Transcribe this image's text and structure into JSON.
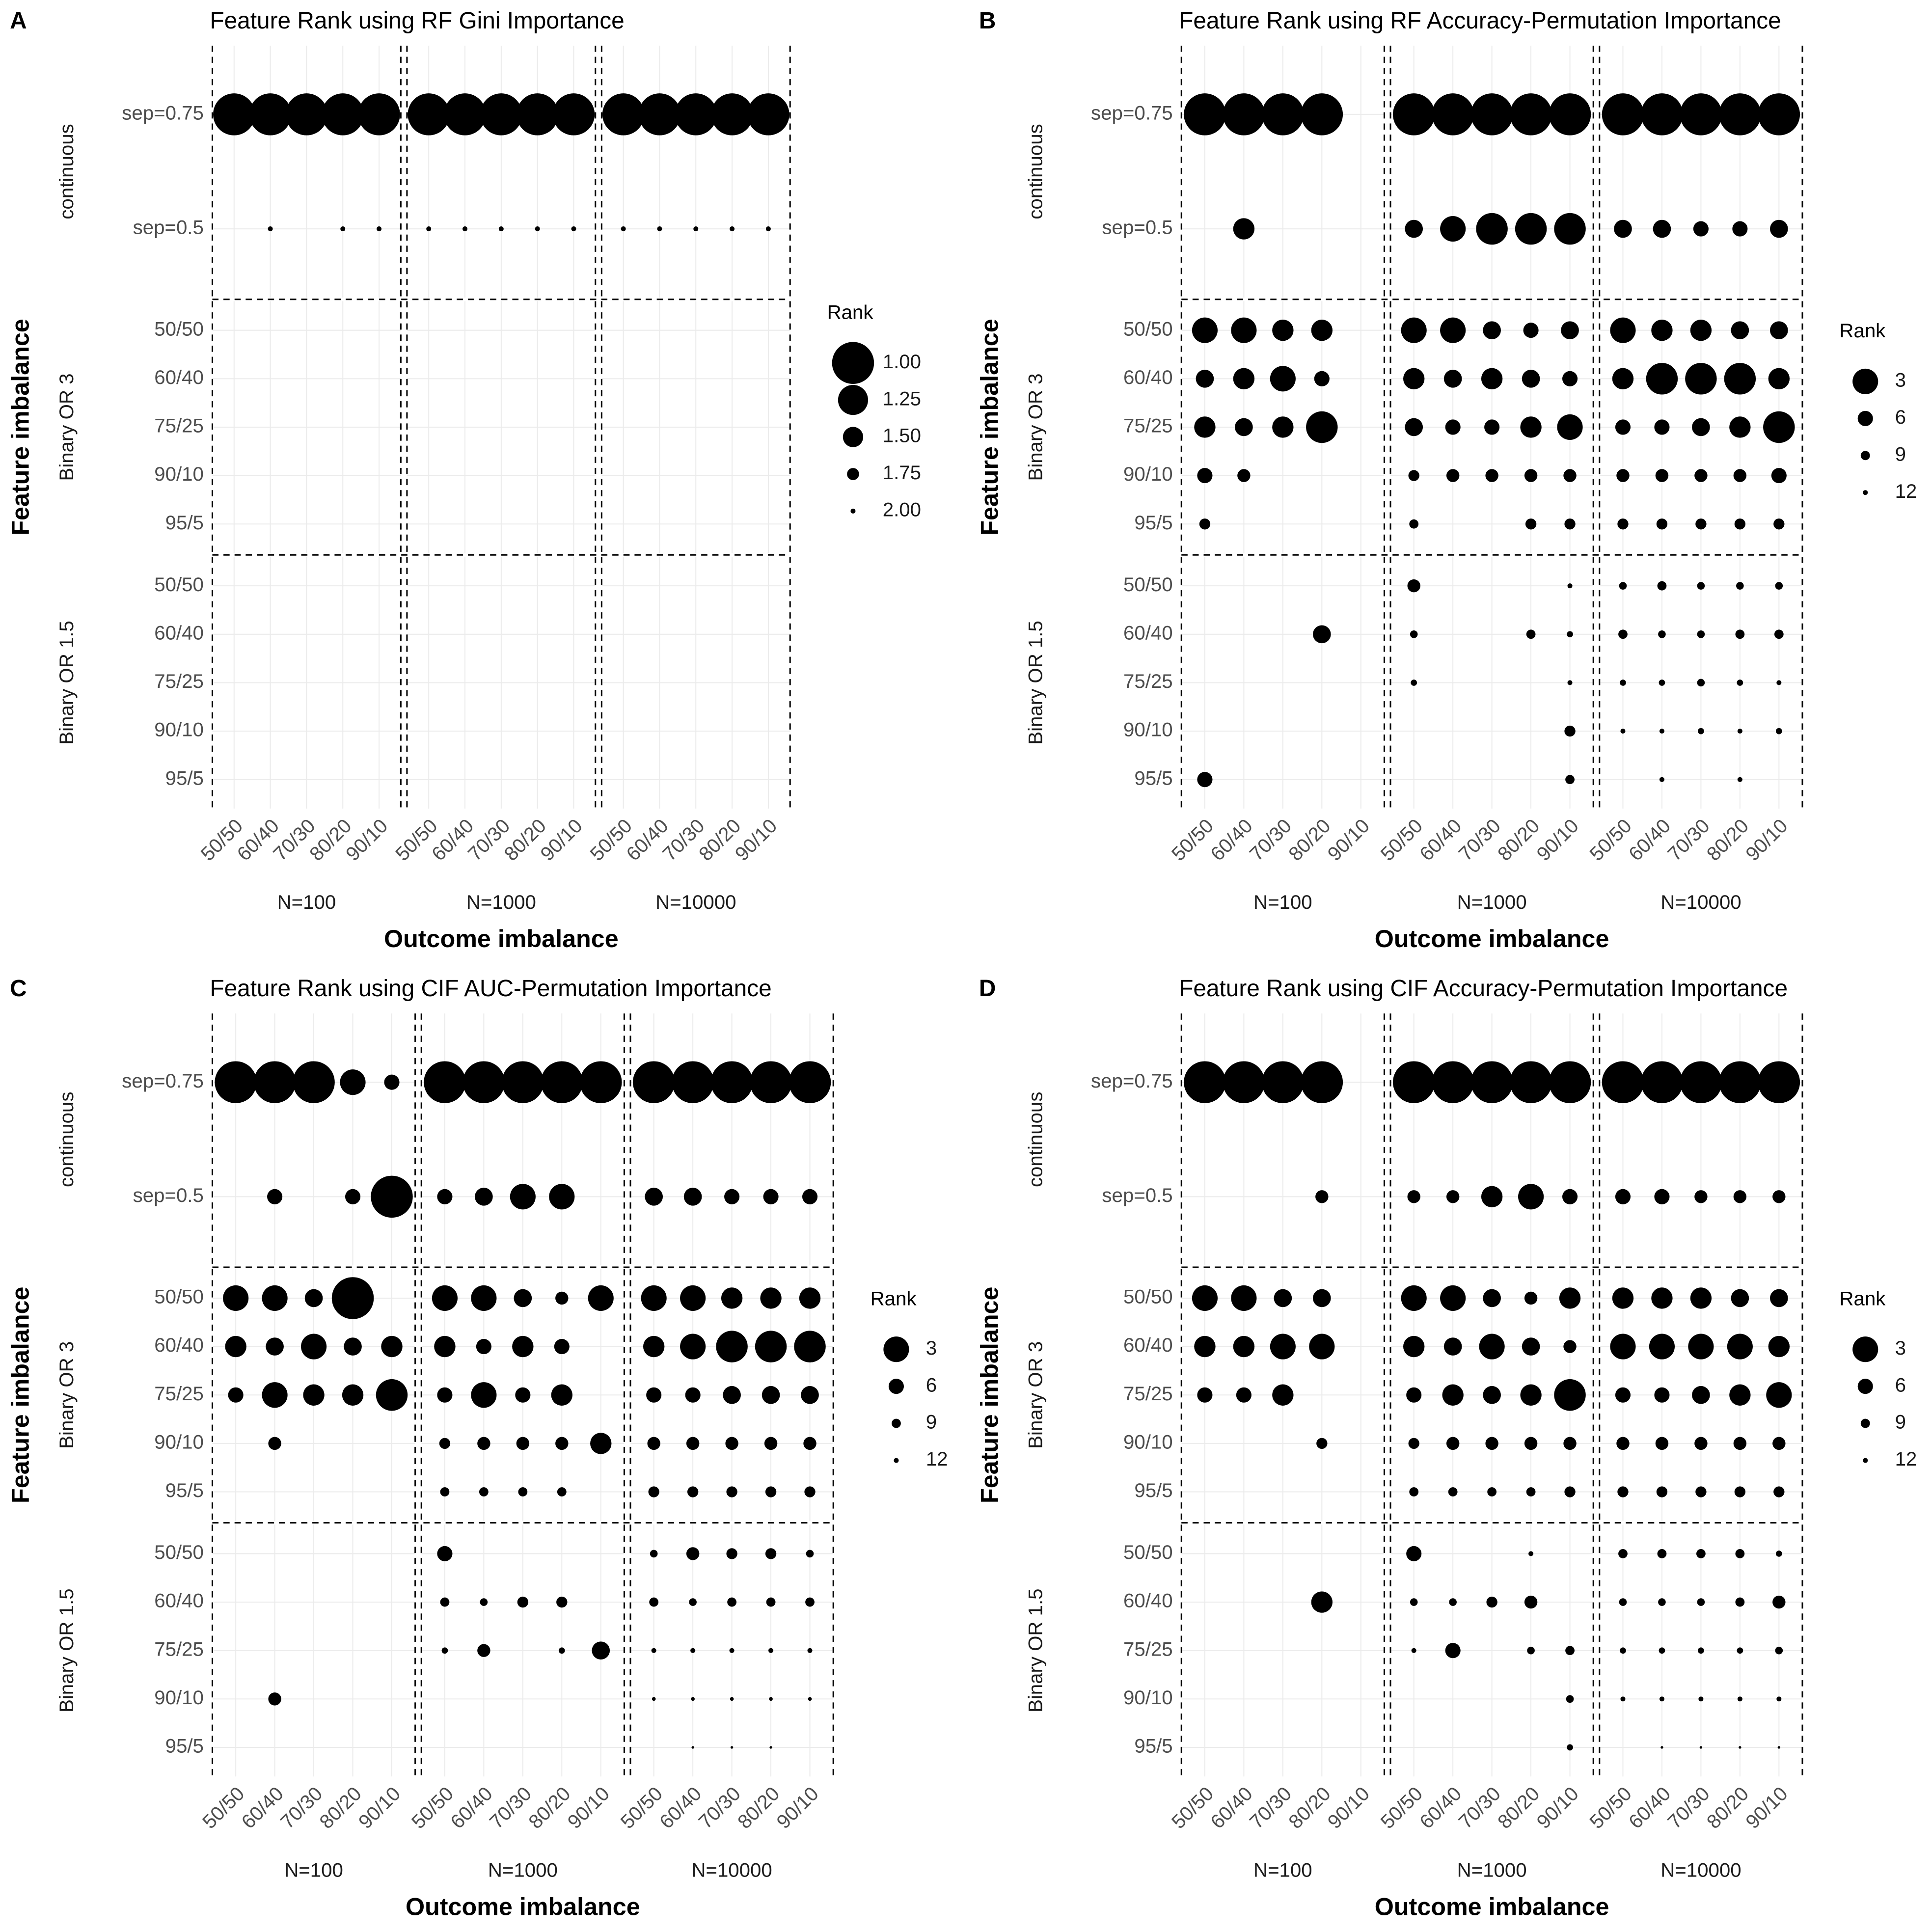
{
  "chart_data": [
    {
      "type": "bubble",
      "panel_label": "A",
      "title": "Feature Rank using RF Gini Importance",
      "x_label": "Outcome imbalance",
      "y_label": "Feature imbalance",
      "facet_columns": [
        "N=100",
        "N=1000",
        "N=10000"
      ],
      "categories": [
        "50/50",
        "60/40",
        "70/30",
        "80/20",
        "90/10"
      ],
      "row_groups": [
        {
          "name": "continuous",
          "rows": [
            "sep=0.75",
            "sep=0.5"
          ]
        },
        {
          "name": "Binary OR 3",
          "rows": [
            "50/50",
            "60/40",
            "75/25",
            "90/10",
            "95/5"
          ]
        },
        {
          "name": "Binary OR 1.5",
          "rows": [
            "50/50",
            "60/40",
            "75/25",
            "90/10",
            "95/5"
          ]
        }
      ],
      "color": "#000000",
      "size_legend": {
        "title": "Rank",
        "ticks": [
          {
            "value": 1,
            "label": "1.00"
          },
          {
            "value": 1.25,
            "label": "1.25"
          },
          {
            "value": 1.5,
            "label": "1.50"
          },
          {
            "value": 1.75,
            "label": "1.75"
          },
          {
            "value": 2,
            "label": "2.00"
          }
        ]
      },
      "values": [
        [
          1,
          1,
          1,
          1,
          1,
          1,
          1,
          1,
          1,
          1,
          1,
          1,
          1,
          1,
          1
        ],
        [
          null,
          2,
          null,
          2,
          2,
          2,
          2,
          2,
          2,
          2,
          2,
          2,
          2,
          2,
          2
        ],
        [
          null,
          null,
          null,
          null,
          null,
          null,
          null,
          null,
          null,
          null,
          null,
          null,
          null,
          null,
          null
        ],
        [
          null,
          null,
          null,
          null,
          null,
          null,
          null,
          null,
          null,
          null,
          null,
          null,
          null,
          null,
          null
        ],
        [
          null,
          null,
          null,
          null,
          null,
          null,
          null,
          null,
          null,
          null,
          null,
          null,
          null,
          null,
          null
        ],
        [
          null,
          null,
          null,
          null,
          null,
          null,
          null,
          null,
          null,
          null,
          null,
          null,
          null,
          null,
          null
        ],
        [
          null,
          null,
          null,
          null,
          null,
          null,
          null,
          null,
          null,
          null,
          null,
          null,
          null,
          null,
          null
        ],
        [
          null,
          null,
          null,
          null,
          null,
          null,
          null,
          null,
          null,
          null,
          null,
          null,
          null,
          null,
          null
        ],
        [
          null,
          null,
          null,
          null,
          null,
          null,
          null,
          null,
          null,
          null,
          null,
          null,
          null,
          null,
          null
        ],
        [
          null,
          null,
          null,
          null,
          null,
          null,
          null,
          null,
          null,
          null,
          null,
          null,
          null,
          null,
          null
        ],
        [
          null,
          null,
          null,
          null,
          null,
          null,
          null,
          null,
          null,
          null,
          null,
          null,
          null,
          null,
          null
        ],
        [
          null,
          null,
          null,
          null,
          null,
          null,
          null,
          null,
          null,
          null,
          null,
          null,
          null,
          null,
          null
        ]
      ]
    },
    {
      "type": "bubble",
      "panel_label": "B",
      "title": "Feature Rank using RF Accuracy-Permutation Importance",
      "x_label": "Outcome imbalance",
      "y_label": "Feature imbalance",
      "facet_columns": [
        "N=100",
        "N=1000",
        "N=10000"
      ],
      "categories": [
        "50/50",
        "60/40",
        "70/30",
        "80/20",
        "90/10"
      ],
      "row_groups": [
        {
          "name": "continuous",
          "rows": [
            "sep=0.75",
            "sep=0.5"
          ]
        },
        {
          "name": "Binary OR 3",
          "rows": [
            "50/50",
            "60/40",
            "75/25",
            "90/10",
            "95/5"
          ]
        },
        {
          "name": "Binary OR 1.5",
          "rows": [
            "50/50",
            "60/40",
            "75/25",
            "90/10",
            "95/5"
          ]
        }
      ],
      "color": "#000000",
      "size_legend": {
        "title": "Rank",
        "ticks": [
          3,
          6,
          9,
          12
        ]
      },
      "values": [
        [
          1,
          1,
          1,
          1,
          null,
          1,
          1,
          1,
          1,
          1,
          1,
          1,
          1,
          1,
          1
        ],
        [
          null,
          4,
          null,
          null,
          null,
          5,
          3,
          2,
          2,
          2,
          5,
          5,
          6,
          6,
          5
        ],
        [
          3,
          3,
          4,
          4,
          null,
          3,
          3,
          5,
          6,
          5,
          3,
          4,
          4,
          5,
          5
        ],
        [
          5,
          4,
          3,
          6,
          null,
          4,
          5,
          4,
          5,
          6,
          4,
          2,
          2,
          2,
          4
        ],
        [
          4,
          5,
          4,
          2,
          null,
          5,
          6,
          6,
          4,
          3,
          6,
          6,
          5,
          4,
          2
        ],
        [
          6,
          7,
          null,
          null,
          null,
          8,
          7,
          7,
          7,
          7,
          7,
          7,
          7,
          7,
          6
        ],
        [
          8,
          null,
          null,
          null,
          null,
          9,
          null,
          null,
          8,
          8,
          8,
          8,
          8,
          8,
          8
        ],
        [
          null,
          null,
          null,
          null,
          null,
          7,
          null,
          null,
          null,
          12,
          10,
          9,
          10,
          10,
          10
        ],
        [
          null,
          null,
          null,
          5,
          null,
          10,
          null,
          null,
          9,
          11,
          9,
          10,
          10,
          9,
          9
        ],
        [
          null,
          null,
          null,
          null,
          null,
          11,
          null,
          null,
          null,
          12,
          11,
          11,
          10,
          11,
          12
        ],
        [
          null,
          null,
          null,
          null,
          null,
          null,
          null,
          null,
          null,
          8,
          12,
          12,
          11,
          12,
          11
        ],
        [
          6,
          null,
          null,
          null,
          null,
          null,
          null,
          null,
          null,
          9,
          null,
          12,
          null,
          12,
          null
        ]
      ]
    },
    {
      "type": "bubble",
      "panel_label": "C",
      "title": "Feature Rank using CIF AUC-Permutation Importance",
      "x_label": "Outcome imbalance",
      "y_label": "Feature imbalance",
      "facet_columns": [
        "N=100",
        "N=1000",
        "N=10000"
      ],
      "categories": [
        "50/50",
        "60/40",
        "70/30",
        "80/20",
        "90/10"
      ],
      "row_groups": [
        {
          "name": "continuous",
          "rows": [
            "sep=0.75",
            "sep=0.5"
          ]
        },
        {
          "name": "Binary OR 3",
          "rows": [
            "50/50",
            "60/40",
            "75/25",
            "90/10",
            "95/5"
          ]
        },
        {
          "name": "Binary OR 1.5",
          "rows": [
            "50/50",
            "60/40",
            "75/25",
            "90/10",
            "95/5"
          ]
        }
      ],
      "color": "#000000",
      "size_legend": {
        "title": "Rank",
        "ticks": [
          3,
          6,
          9,
          12
        ]
      },
      "values": [
        [
          1,
          1,
          1,
          3,
          6,
          1,
          1,
          1,
          1,
          1,
          1,
          1,
          1,
          1,
          1
        ],
        [
          null,
          6,
          null,
          6,
          1,
          6,
          5,
          3,
          3,
          null,
          5,
          5,
          6,
          6,
          6
        ],
        [
          3,
          3,
          5,
          1,
          null,
          3,
          3,
          5,
          7,
          3,
          3,
          3,
          4,
          4,
          4
        ],
        [
          4,
          5,
          3,
          5,
          4,
          4,
          6,
          4,
          6,
          null,
          4,
          3,
          2,
          2,
          2
        ],
        [
          6,
          3,
          4,
          4,
          2,
          6,
          3,
          6,
          4,
          null,
          6,
          6,
          5,
          5,
          5
        ],
        [
          null,
          7,
          null,
          null,
          null,
          8,
          7,
          7,
          7,
          4,
          7,
          7,
          7,
          7,
          7
        ],
        [
          null,
          null,
          null,
          null,
          null,
          9,
          9,
          9,
          9,
          null,
          8,
          8,
          8,
          8,
          8
        ],
        [
          null,
          null,
          null,
          null,
          null,
          6,
          null,
          null,
          null,
          null,
          10,
          7,
          8,
          8,
          10
        ],
        [
          null,
          null,
          null,
          null,
          null,
          9,
          10,
          8,
          8,
          null,
          9,
          10,
          9,
          9,
          9
        ],
        [
          null,
          null,
          null,
          null,
          null,
          11,
          7,
          null,
          11,
          5,
          12,
          12,
          12,
          12,
          12
        ],
        [
          null,
          7,
          null,
          null,
          null,
          null,
          null,
          null,
          null,
          null,
          13,
          13,
          13,
          13,
          13
        ],
        [
          null,
          null,
          null,
          null,
          null,
          null,
          null,
          null,
          null,
          null,
          null,
          14,
          14,
          14,
          null
        ]
      ]
    },
    {
      "type": "bubble",
      "panel_label": "D",
      "title": "Feature Rank using CIF Accuracy-Permutation Importance",
      "x_label": "Outcome imbalance",
      "y_label": "Feature imbalance",
      "facet_columns": [
        "N=100",
        "N=1000",
        "N=10000"
      ],
      "categories": [
        "50/50",
        "60/40",
        "70/30",
        "80/20",
        "90/10"
      ],
      "row_groups": [
        {
          "name": "continuous",
          "rows": [
            "sep=0.75",
            "sep=0.5"
          ]
        },
        {
          "name": "Binary OR 3",
          "rows": [
            "50/50",
            "60/40",
            "75/25",
            "90/10",
            "95/5"
          ]
        },
        {
          "name": "Binary OR 1.5",
          "rows": [
            "50/50",
            "60/40",
            "75/25",
            "90/10",
            "95/5"
          ]
        }
      ],
      "color": "#000000",
      "size_legend": {
        "title": "Rank",
        "ticks": [
          3,
          6,
          9,
          12
        ]
      },
      "values": [
        [
          1,
          1,
          1,
          1,
          null,
          1,
          1,
          1,
          1,
          1,
          1,
          1,
          1,
          1,
          1
        ],
        [
          null,
          null,
          null,
          7,
          null,
          7,
          7,
          4,
          3,
          6,
          6,
          6,
          7,
          7,
          7
        ],
        [
          3,
          3,
          5,
          5,
          null,
          3,
          3,
          5,
          7,
          4,
          4,
          4,
          4,
          5,
          5
        ],
        [
          4,
          4,
          3,
          3,
          null,
          4,
          5,
          3,
          5,
          7,
          3,
          3,
          3,
          3,
          4
        ],
        [
          6,
          6,
          4,
          null,
          null,
          6,
          4,
          5,
          4,
          2,
          6,
          6,
          5,
          4,
          3
        ],
        [
          null,
          null,
          null,
          8,
          null,
          8,
          7,
          7,
          7,
          7,
          7,
          7,
          7,
          7,
          7
        ],
        [
          null,
          null,
          null,
          null,
          null,
          9,
          9,
          9,
          9,
          8,
          8,
          8,
          8,
          8,
          8
        ],
        [
          null,
          null,
          null,
          null,
          null,
          6,
          null,
          null,
          12,
          null,
          9,
          9,
          9,
          9,
          11
        ],
        [
          null,
          null,
          null,
          4,
          null,
          10,
          10,
          8,
          7,
          null,
          10,
          10,
          10,
          9,
          7
        ],
        [
          null,
          null,
          null,
          null,
          null,
          12,
          6,
          null,
          10,
          9,
          11,
          11,
          11,
          11,
          10
        ],
        [
          null,
          null,
          null,
          null,
          null,
          null,
          null,
          null,
          null,
          10,
          12,
          12,
          12,
          12,
          12
        ],
        [
          null,
          null,
          null,
          null,
          null,
          null,
          null,
          null,
          null,
          11,
          null,
          14,
          14,
          14,
          14
        ]
      ]
    }
  ]
}
